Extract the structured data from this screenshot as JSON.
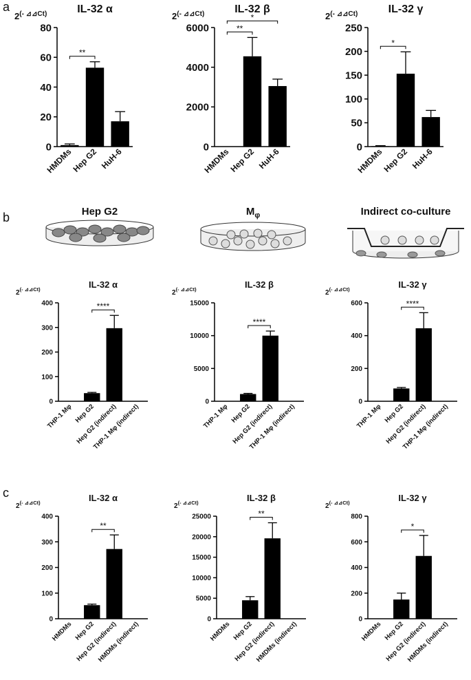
{
  "panels": [
    "a",
    "b",
    "c"
  ],
  "illustrations": [
    {
      "text": "Hep G2"
    },
    {
      "text": "M",
      "subscript": "φ"
    },
    {
      "text": "Indirect co-culture"
    }
  ],
  "chart_data": [
    {
      "type": "bar",
      "title": "IL-32 α",
      "y_label": {
        "base": "2",
        "exponent": "(- ⊿⊿Ct)"
      },
      "categories": [
        "HMDMs",
        "Hep G2",
        "HuH-6"
      ],
      "values": [
        1,
        53,
        17
      ],
      "errors": [
        0.8,
        4,
        6.5
      ],
      "ylim": [
        0,
        80
      ],
      "yticks": [
        0,
        20,
        40,
        60,
        80
      ],
      "color": "#000000",
      "annotations": [
        {
          "text": "**",
          "between": [
            0,
            1
          ]
        }
      ]
    },
    {
      "type": "bar",
      "title": "IL-32 β",
      "y_label": {
        "base": "2",
        "exponent": "(- ⊿⊿Ct)"
      },
      "categories": [
        "HMDMs",
        "Hep G2",
        "HuH-6"
      ],
      "values": [
        0,
        4550,
        3050
      ],
      "errors": [
        0,
        950,
        350
      ],
      "ylim": [
        0,
        6000
      ],
      "yticks": [
        0,
        2000,
        4000,
        6000
      ],
      "color": "#000000",
      "annotations": [
        {
          "text": "**",
          "between": [
            0,
            1
          ]
        },
        {
          "text": "*",
          "between": [
            0,
            2
          ]
        }
      ]
    },
    {
      "type": "bar",
      "title": "IL-32 γ",
      "y_label": {
        "base": "2",
        "exponent": "(- ⊿⊿Ct)"
      },
      "categories": [
        "HMDMs",
        "Hep G2",
        "HuH-6"
      ],
      "values": [
        1,
        153,
        62
      ],
      "errors": [
        1,
        46,
        14
      ],
      "ylim": [
        0,
        250
      ],
      "yticks": [
        0,
        50,
        100,
        150,
        200,
        250
      ],
      "color": "#000000",
      "annotations": [
        {
          "text": "*",
          "between": [
            0,
            1
          ]
        }
      ]
    },
    {
      "type": "bar",
      "title": "IL-32 α",
      "y_label": {
        "base": "2",
        "exponent": "(- ⊿⊿Ct)"
      },
      "categories": [
        "THP-1 Mφ",
        "Hep G2",
        "Hep G2 (indirect)",
        "THP-1 Mφ (indirect)"
      ],
      "values": [
        0,
        33,
        297,
        0
      ],
      "errors": [
        0,
        3,
        52,
        0
      ],
      "ylim": [
        0,
        400
      ],
      "yticks": [
        0,
        100,
        200,
        300,
        400
      ],
      "color": "#000000",
      "annotations": [
        {
          "text": "****",
          "between": [
            1,
            2
          ]
        }
      ]
    },
    {
      "type": "bar",
      "title": "IL-32 β",
      "y_label": {
        "base": "2",
        "exponent": "(- ⊿⊿Ct)"
      },
      "categories": [
        "THP-1 Mφ",
        "Hep G2",
        "Hep G2 (indirect)",
        "THP-1 Mφ (indirect)"
      ],
      "values": [
        0,
        1100,
        10000,
        0
      ],
      "errors": [
        0,
        100,
        700,
        0
      ],
      "ylim": [
        0,
        15000
      ],
      "yticks": [
        0,
        5000,
        10000,
        15000
      ],
      "color": "#000000",
      "annotations": [
        {
          "text": "****",
          "between": [
            1,
            2
          ]
        }
      ]
    },
    {
      "type": "bar",
      "title": "IL-32 γ",
      "y_label": {
        "base": "2",
        "exponent": "(- ⊿⊿Ct)"
      },
      "categories": [
        "THP-1 Mφ",
        "Hep G2",
        "Hep G2 (indirect)",
        "THP-1 Mφ (indirect)"
      ],
      "values": [
        0,
        78,
        445,
        0
      ],
      "errors": [
        0,
        6,
        95,
        0
      ],
      "ylim": [
        0,
        600
      ],
      "yticks": [
        0,
        200,
        400,
        600
      ],
      "color": "#000000",
      "annotations": [
        {
          "text": "****",
          "between": [
            1,
            2
          ]
        }
      ]
    },
    {
      "type": "bar",
      "title": "IL-32 α",
      "y_label": {
        "base": "2",
        "exponent": "(- ⊿⊿Ct)"
      },
      "categories": [
        "HMDMs",
        "Hep G2",
        "Hep G2 (indirect)",
        "HMDMs (indirect)"
      ],
      "values": [
        0,
        53,
        272,
        0
      ],
      "errors": [
        0,
        4,
        55,
        0
      ],
      "ylim": [
        0,
        400
      ],
      "yticks": [
        0,
        100,
        200,
        300,
        400
      ],
      "color": "#000000",
      "annotations": [
        {
          "text": "**",
          "between": [
            1,
            2
          ]
        }
      ]
    },
    {
      "type": "bar",
      "title": "IL-32 β",
      "y_label": {
        "base": "2",
        "exponent": "(- ⊿⊿Ct)"
      },
      "categories": [
        "HMDMs",
        "Hep G2",
        "Hep G2 (indirect)",
        "HMDMs (indirect)"
      ],
      "values": [
        0,
        4500,
        19600,
        0
      ],
      "errors": [
        0,
        900,
        3800,
        0
      ],
      "ylim": [
        0,
        25000
      ],
      "yticks": [
        0,
        5000,
        10000,
        15000,
        20000,
        25000
      ],
      "color": "#000000",
      "annotations": [
        {
          "text": "**",
          "between": [
            1,
            2
          ]
        }
      ]
    },
    {
      "type": "bar",
      "title": "IL-32 γ",
      "y_label": {
        "base": "2",
        "exponent": "(- ⊿⊿Ct)"
      },
      "categories": [
        "HMDMs",
        "Hep G2",
        "Hep G2 (indirect)",
        "HMDMs (indirect)"
      ],
      "values": [
        0,
        150,
        490,
        0
      ],
      "errors": [
        0,
        50,
        160,
        0
      ],
      "ylim": [
        0,
        800
      ],
      "yticks": [
        0,
        200,
        400,
        600,
        800
      ],
      "color": "#000000",
      "annotations": [
        {
          "text": "*",
          "between": [
            1,
            2
          ]
        }
      ]
    }
  ]
}
